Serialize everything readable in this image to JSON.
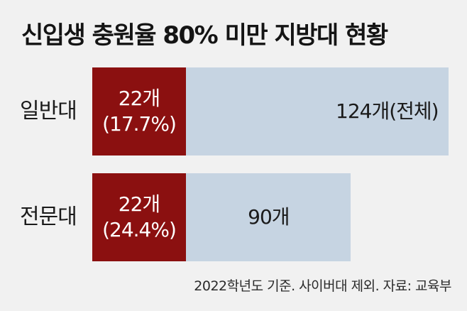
{
  "title": "신입생 충원율 80% 미만 지방대 현황",
  "source": "2022학년도 기준. 사이버대 제외. 자료: 교육부",
  "colors": {
    "part": "#8b1010",
    "total": "#c6d4e2",
    "background": "#f1f1f1"
  },
  "chart_data": {
    "type": "bar",
    "orientation": "horizontal",
    "title": "신입생 충원율 80% 미만 지방대 현황",
    "categories": [
      "일반대",
      "전문대"
    ],
    "series": [
      {
        "values": [
          22,
          22
        ],
        "labels": [
          "22개",
          "22개"
        ],
        "percent_labels": [
          "(17.7%)",
          "(24.4%)"
        ]
      },
      {
        "values": [
          124,
          90
        ],
        "labels": [
          "124개(전체)",
          "90개"
        ]
      }
    ],
    "xlim": [
      0,
      124
    ],
    "legend": "none",
    "grid": false
  }
}
